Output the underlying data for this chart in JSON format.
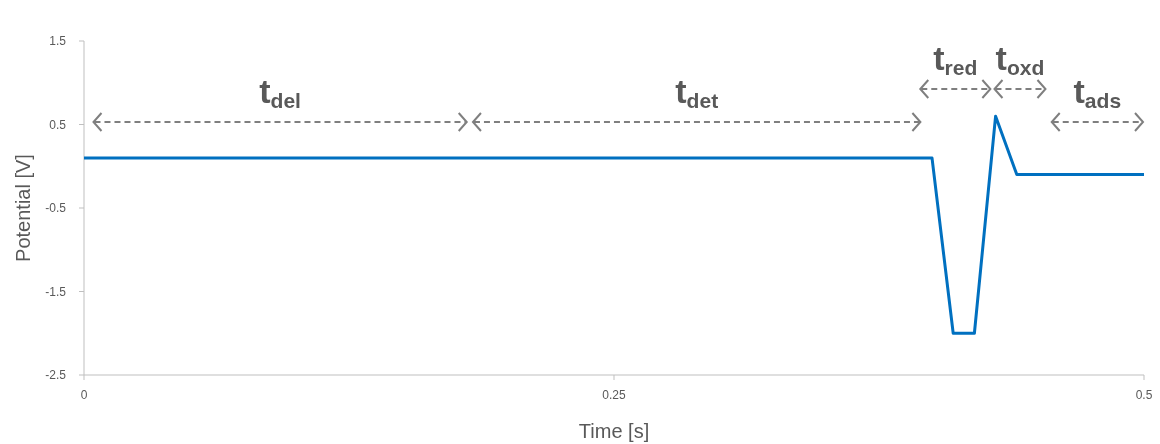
{
  "chart_data": {
    "type": "line",
    "xlabel": "Time [s]",
    "ylabel": "Potential [V]",
    "x": [
      0,
      0.4,
      0.41,
      0.42,
      0.43,
      0.44,
      0.5
    ],
    "series": [
      {
        "color": "#0070c0",
        "values": [
          0.1,
          0.1,
          -2,
          -2,
          0.6,
          -0.1,
          -0.1
        ]
      }
    ],
    "xlim": [
      0,
      0.5
    ],
    "xticks": [
      0,
      0.25,
      0.5
    ],
    "ylim": [
      -2.5,
      1.5
    ],
    "yticks": [
      -2.5,
      -1.5,
      -0.5,
      0.5,
      1.5
    ],
    "marker": "none",
    "line_style": "solid",
    "annotations": [
      "t$_{del}$",
      "t$_{det}$",
      "t$_{red}$",
      "t$_{oxd}$",
      "t$_{ads}$"
    ]
  }
}
